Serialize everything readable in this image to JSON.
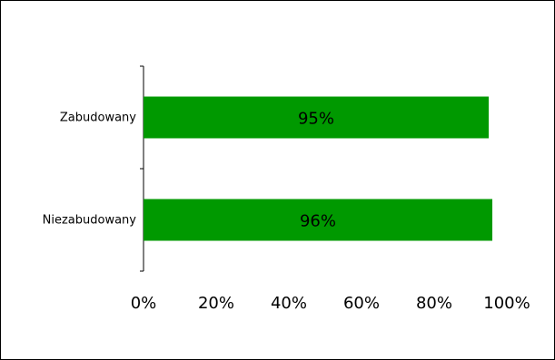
{
  "chart_data": {
    "type": "bar",
    "orientation": "horizontal",
    "categories": [
      "Zabudowany",
      "Niezabudowany"
    ],
    "values": [
      95,
      96
    ],
    "data_labels": [
      "95%",
      "96%"
    ],
    "xlim": [
      0,
      100
    ],
    "x_ticks": [
      0,
      20,
      40,
      60,
      80,
      100
    ],
    "x_tick_labels": [
      "0%",
      "20%",
      "40%",
      "60%",
      "80%",
      "100%"
    ],
    "bar_color": "#009900",
    "grid": false,
    "legend": "none"
  }
}
